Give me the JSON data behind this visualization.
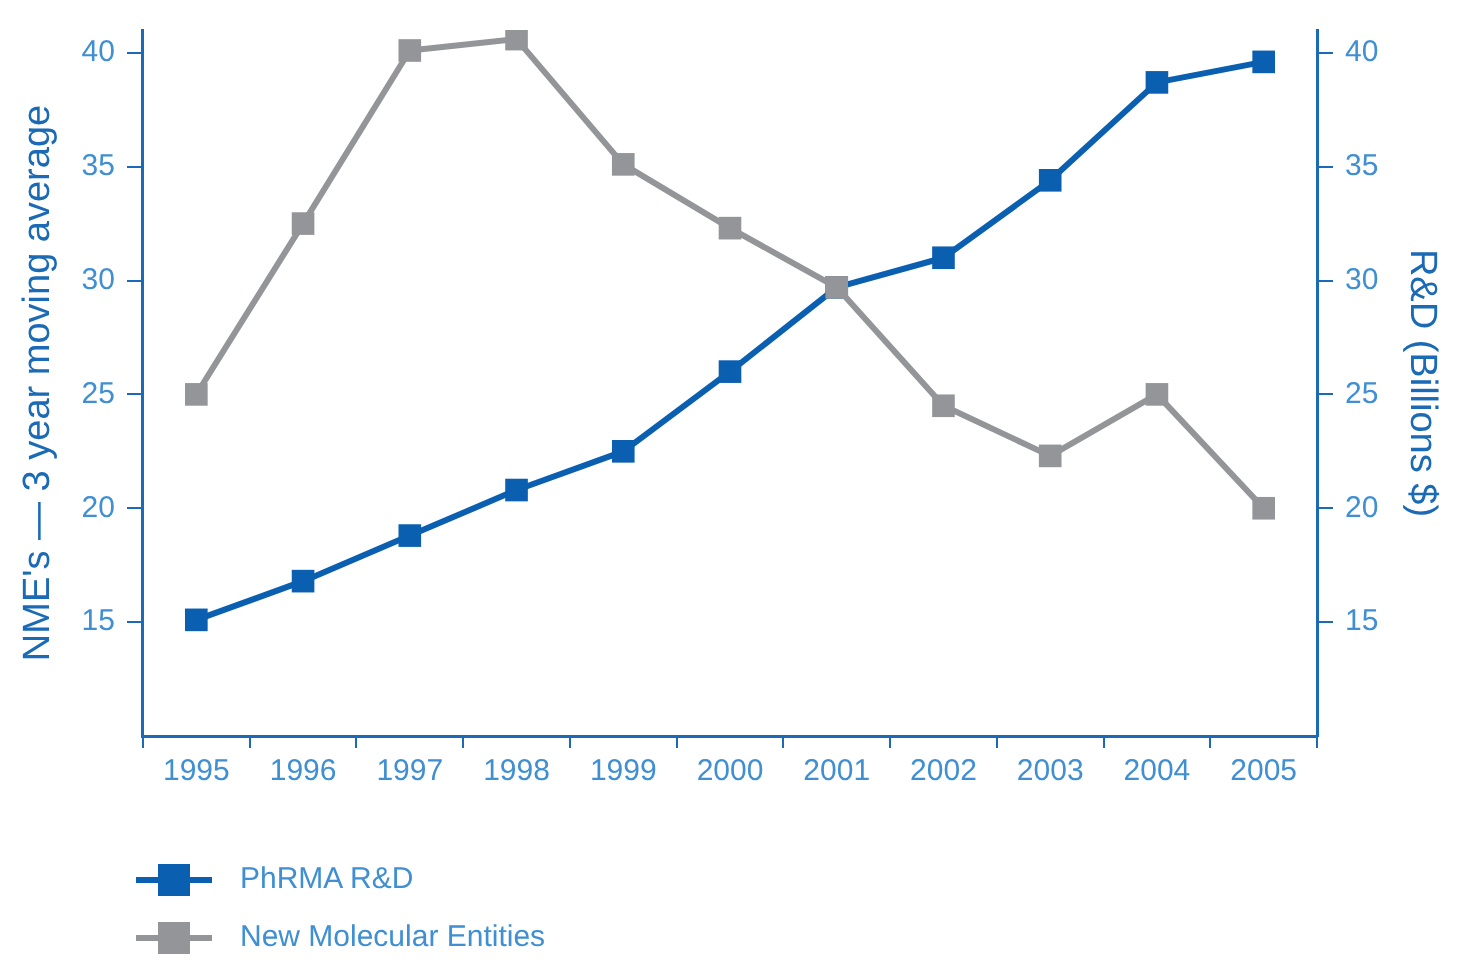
{
  "chart_data": {
    "type": "line",
    "ylabel": "NME's — 3 year moving average",
    "y2label": "R&D (Billions $)",
    "categories": [
      "1995",
      "1996",
      "1997",
      "1998",
      "1999",
      "2000",
      "2001",
      "2002",
      "2003",
      "2004",
      "2005"
    ],
    "series": [
      {
        "name": "PhRMA R&D",
        "color": "#0a5fb0",
        "axis": "y2",
        "values": [
          15.1,
          16.8,
          18.8,
          20.8,
          22.5,
          26,
          29.7,
          31,
          34.4,
          38.7,
          39.6
        ]
      },
      {
        "name": "New Molecular Entities",
        "color": "#939598",
        "values": [
          25,
          32.5,
          40.1,
          40.6,
          35.1,
          32.3,
          29.7,
          24.5,
          22.3,
          25,
          20
        ]
      }
    ],
    "ylim": [
      10,
      41
    ],
    "yticks": [
      15,
      20,
      25,
      30,
      35,
      40
    ],
    "y2lim": [
      10,
      41
    ],
    "y2ticks": [
      15,
      20,
      25,
      30,
      35,
      40
    ],
    "marker": "square",
    "line_style": "solid",
    "grid": false,
    "legend": "bottom left"
  }
}
